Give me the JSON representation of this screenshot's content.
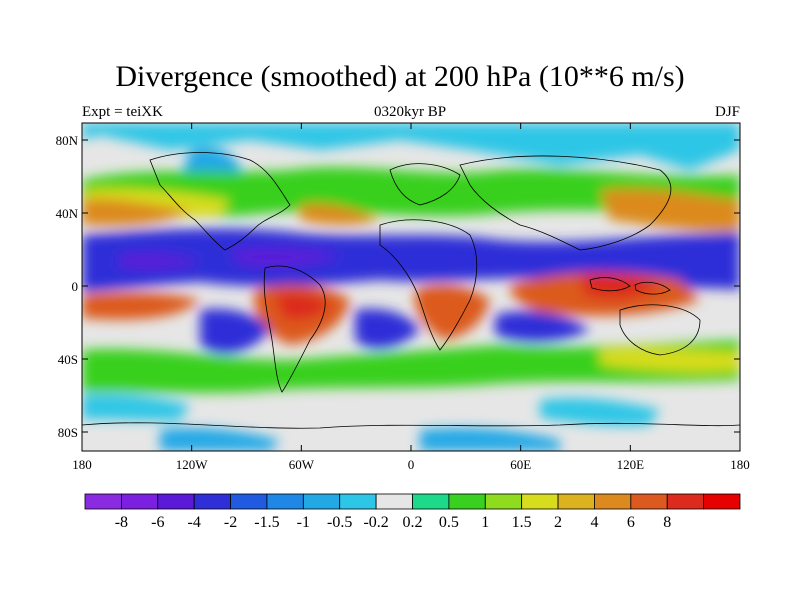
{
  "title": "Divergence (smoothed) at 200 hPa (10**6 m/s)",
  "subtitle_left": "Expt = teiXK",
  "subtitle_center": "0320kyr BP",
  "subtitle_right": "DJF",
  "y_ticks": [
    "80N",
    "40N",
    "0",
    "40S",
    "80S"
  ],
  "x_ticks": [
    "180",
    "120W",
    "60W",
    "0",
    "60E",
    "120E",
    "180"
  ],
  "colorbar": {
    "colors": [
      "#8a2be2",
      "#7b1fe0",
      "#5a1ad8",
      "#2f2fd8",
      "#1f5ae0",
      "#1f87e6",
      "#23a8e6",
      "#2ec6e6",
      "#e6e6e6",
      "#1fd98a",
      "#39d01f",
      "#8fdc1f",
      "#d8dc1f",
      "#dcb21f",
      "#dc8a1f",
      "#dc5a1f",
      "#dc2a1f",
      "#e60000"
    ],
    "labels": [
      "-8",
      "-6",
      "-4",
      "-2",
      "-1.5",
      "-1",
      "-0.5",
      "-0.2",
      "0.2",
      "0.5",
      "1",
      "1.5",
      "2",
      "4",
      "6",
      "8"
    ]
  },
  "fields": [
    {
      "name": "itcz-convergence-band",
      "color": "#2f2fd8"
    },
    {
      "name": "tropical-divergence-americas",
      "color": "#dc5a1f"
    },
    {
      "name": "tropical-divergence-africa",
      "color": "#dc5a1f"
    },
    {
      "name": "tropical-divergence-indonesia",
      "color": "#dc2a1f"
    },
    {
      "name": "midlat-divergence-north",
      "color": "#dc8a1f"
    },
    {
      "name": "midlat-divergence-south",
      "color": "#39d01f"
    }
  ]
}
